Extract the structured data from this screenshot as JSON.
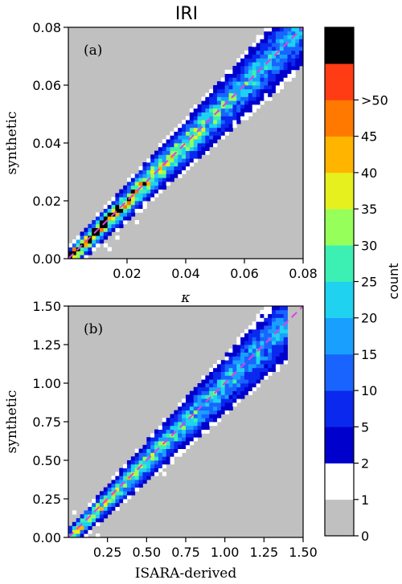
{
  "chart_data": {
    "type": "heatmap",
    "title": "IRI",
    "panels": [
      {
        "label": "(a)",
        "xlabel": "κ",
        "ylabel": "synthetic",
        "xlim": [
          0,
          0.08
        ],
        "ylim": [
          0,
          0.08
        ],
        "xticks": [
          0.02,
          0.04,
          0.06,
          0.08
        ],
        "xtick_labels": [
          "0.02",
          "0.04",
          "0.06",
          "0.08"
        ],
        "yticks": [
          0,
          0.02,
          0.04,
          0.06,
          0.08
        ],
        "ytick_labels": [
          "0.00",
          "0.02",
          "0.04",
          "0.06",
          "0.08"
        ],
        "background_color": "#c0c0c0",
        "reference_line": {
          "from": [
            0,
            0
          ],
          "to": [
            0.08,
            0.08
          ],
          "color": "#e040e0",
          "style": "dashed"
        },
        "bins": 60,
        "data_extent": [
          0,
          0.08
        ]
      },
      {
        "label": "(b)",
        "xlabel": "ISARA-derived",
        "ylabel": "synthetic",
        "xlim": [
          0,
          1.5
        ],
        "ylim": [
          0,
          1.5
        ],
        "xticks": [
          0.25,
          0.5,
          0.75,
          1.0,
          1.25,
          1.5
        ],
        "xtick_labels": [
          "0.25",
          "0.50",
          "0.75",
          "1.00",
          "1.25",
          "1.50"
        ],
        "yticks": [
          0,
          0.25,
          0.5,
          0.75,
          1.0,
          1.25,
          1.5
        ],
        "ytick_labels": [
          "0.00",
          "0.25",
          "0.50",
          "0.75",
          "1.00",
          "1.25",
          "1.50"
        ],
        "background_color": "#c0c0c0",
        "reference_line": {
          "from": [
            0,
            0
          ],
          "to": [
            1.5,
            1.5
          ],
          "color": "#e040e0",
          "style": "dashed"
        },
        "bins": 60,
        "data_extent": [
          0,
          1.4
        ]
      }
    ],
    "colorbar": {
      "label": "count",
      "levels": [
        0,
        1,
        2,
        5,
        10,
        15,
        20,
        25,
        30,
        35,
        40,
        45,
        50
      ],
      "tick_labels": [
        "0",
        "1",
        "2",
        "5",
        "10",
        "15",
        "20",
        "25",
        "30",
        "35",
        "40",
        "45",
        ">50"
      ],
      "colors": [
        "#c0c0c0",
        "#ffffff",
        "#0000cd",
        "#0a28ee",
        "#1964ff",
        "#19a0ff",
        "#1ed2f0",
        "#3cf0b4",
        "#96ff5a",
        "#e6f01e",
        "#ffb400",
        "#ff7800",
        "#ff3c14",
        "#000000"
      ]
    }
  }
}
